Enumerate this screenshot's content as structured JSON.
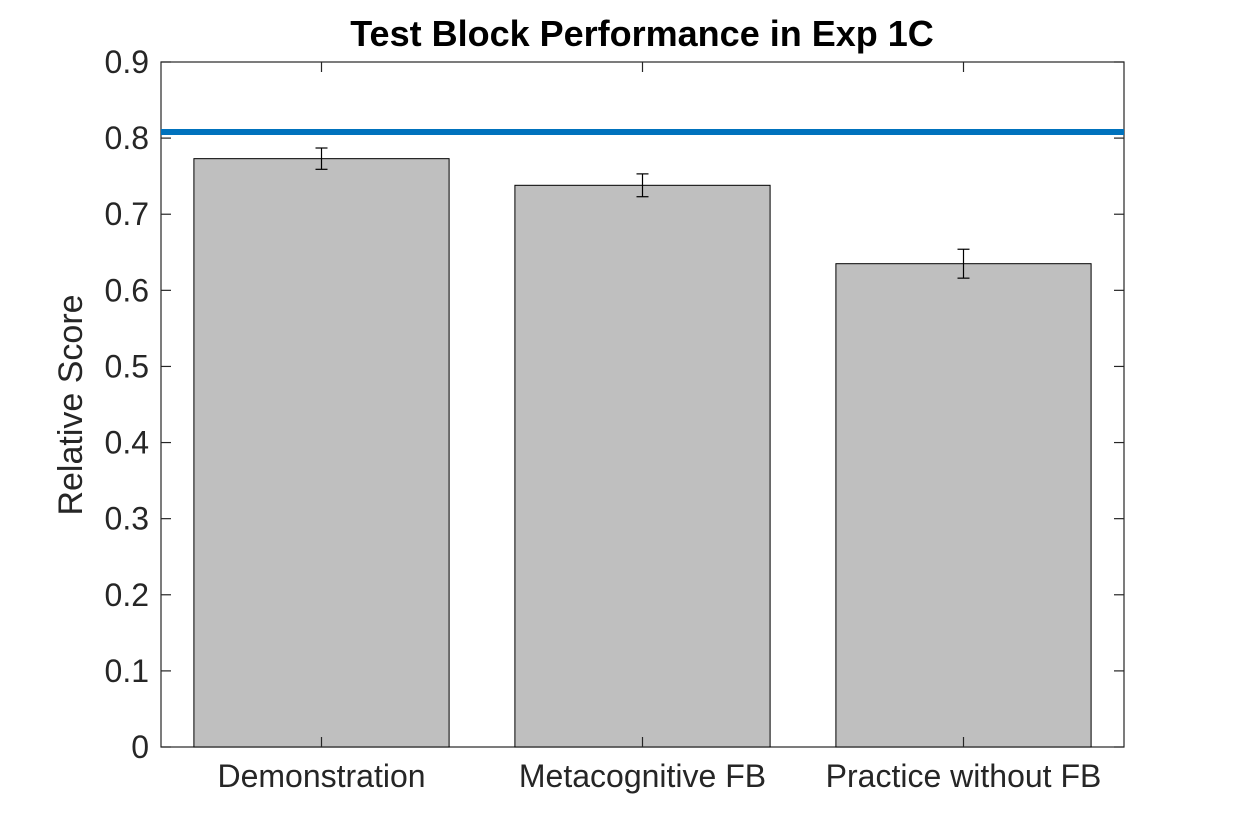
{
  "chart_data": {
    "type": "bar",
    "title": "Test Block Performance in Exp 1C",
    "xlabel": "",
    "ylabel": "Relative Score",
    "categories": [
      "Demonstration",
      "Metacognitive FB",
      "Practice without FB"
    ],
    "values": [
      0.773,
      0.738,
      0.635
    ],
    "error_bars": [
      0.014,
      0.015,
      0.019
    ],
    "reference_line": {
      "value": 0.808,
      "color": "#0072BD"
    },
    "ylim": [
      0,
      0.9
    ],
    "yticks": [
      "0",
      "0.1",
      "0.2",
      "0.3",
      "0.4",
      "0.5",
      "0.6",
      "0.7",
      "0.8",
      "0.9"
    ],
    "bar_color": "#BFBFBF",
    "grid": false,
    "legend": "none"
  }
}
